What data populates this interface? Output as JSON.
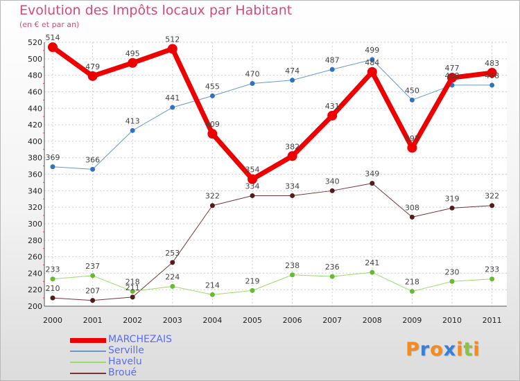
{
  "title": "Evolution des Impôts locaux par Habitant",
  "subtitle": "(en € et par an)",
  "chart_data": {
    "type": "line",
    "title": "Evolution des Impôts locaux par Habitant",
    "subtitle": "(en € et par an)",
    "x": [
      "2000",
      "2001",
      "2002",
      "2003",
      "2004",
      "2005",
      "2006",
      "2007",
      "2008",
      "2009",
      "2010",
      "2011"
    ],
    "ylim": [
      200,
      520
    ],
    "yticks": [
      "200",
      "220",
      "240",
      "260",
      "280",
      "300",
      "320",
      "340",
      "360",
      "380",
      "400",
      "420",
      "440",
      "460",
      "480",
      "500",
      "520"
    ],
    "grid": true,
    "legend_position": "bottom-left",
    "series": [
      {
        "name": "MARCHEZAIS",
        "color": "#ee0000",
        "values": [
          514,
          479,
          495,
          512,
          409,
          354,
          382,
          431,
          484,
          392,
          477,
          483
        ]
      },
      {
        "name": "Serville",
        "color": "#6699cc",
        "values": [
          369,
          366,
          413,
          441,
          455,
          470,
          474,
          487,
          499,
          450,
          468,
          468
        ]
      },
      {
        "name": "Havelu",
        "color": "#99dd66",
        "values": [
          233,
          237,
          218,
          224,
          214,
          219,
          238,
          236,
          241,
          218,
          230,
          233
        ]
      },
      {
        "name": "Broué",
        "color": "#773333",
        "values": [
          210,
          207,
          211,
          253,
          322,
          334,
          334,
          340,
          349,
          308,
          319,
          322
        ]
      }
    ]
  },
  "logo": {
    "text": "Proxiti",
    "letters": [
      {
        "ch": "P",
        "color": "#f58a1f"
      },
      {
        "ch": "r",
        "color": "#3a7fd6"
      },
      {
        "ch": "o",
        "color": "#f58a1f"
      },
      {
        "ch": "x",
        "color": "#3a7fd6"
      },
      {
        "ch": "i",
        "color": "#f58a1f"
      },
      {
        "ch": "t",
        "color": "#8ac43f"
      },
      {
        "ch": "i",
        "color": "#f58a1f"
      }
    ]
  }
}
